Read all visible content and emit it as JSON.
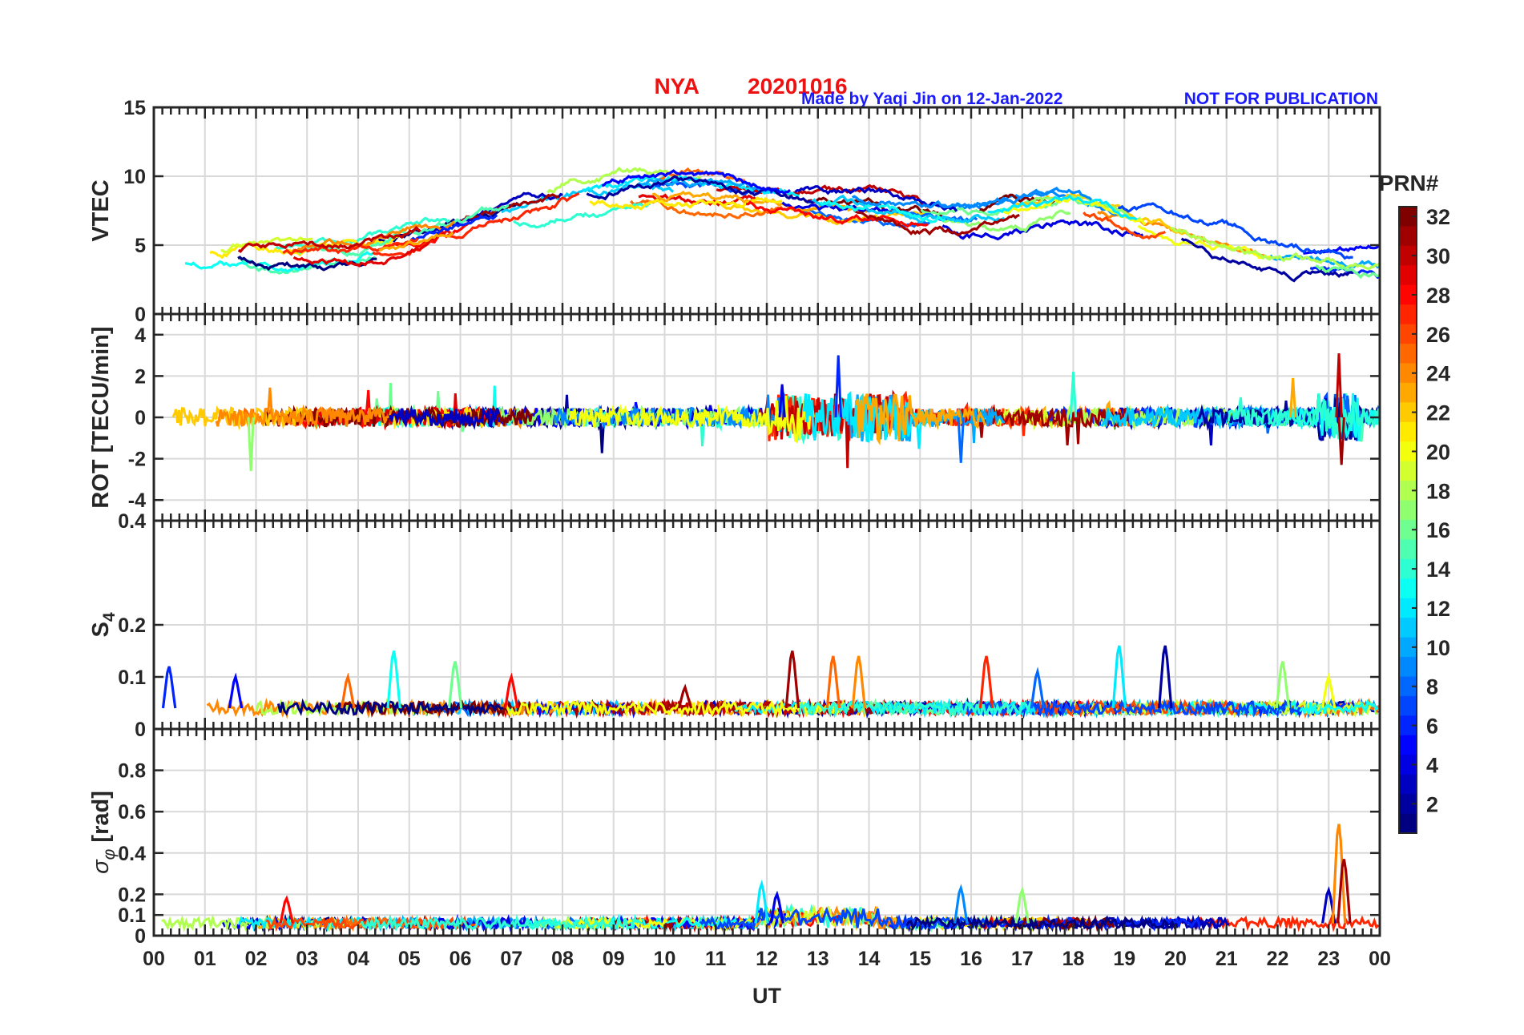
{
  "header": {
    "station": "NYA",
    "date": "20201016",
    "credit": "Made by Yaqi Jin on 12-Jan-2022",
    "notice": "NOT FOR PUBLICATION",
    "title_color": "#ee1111",
    "credit_color": "#1a1aff"
  },
  "chart_data": {
    "type": "line",
    "xlabel": "UT",
    "x_range_hours": [
      0,
      24
    ],
    "x_ticks": [
      "00",
      "01",
      "02",
      "03",
      "04",
      "05",
      "06",
      "07",
      "08",
      "09",
      "10",
      "11",
      "12",
      "13",
      "14",
      "15",
      "16",
      "17",
      "18",
      "19",
      "20",
      "21",
      "22",
      "23",
      "00"
    ],
    "grid": true,
    "colormap": "jet",
    "colorbar": {
      "label": "PRN#",
      "range": [
        1,
        32
      ],
      "ticks": [
        "2",
        "4",
        "6",
        "8",
        "10",
        "12",
        "14",
        "16",
        "18",
        "20",
        "22",
        "24",
        "26",
        "28",
        "30",
        "32"
      ],
      "tick_values": [
        2,
        4,
        6,
        8,
        10,
        12,
        14,
        16,
        18,
        20,
        22,
        24,
        26,
        28,
        30,
        32
      ]
    },
    "panels": [
      {
        "id": "vtec",
        "ylabel": "VTEC",
        "ylim": [
          0,
          15
        ],
        "yticks": [
          0,
          5,
          10,
          15
        ],
        "ytick_labels": [
          "0",
          "5",
          "10",
          "15"
        ],
        "series_summary": "VTEC per PRN, diurnal shape: ~3-5 near 00 UT, rising to ~8-10 around 10-18 UT, falling to ~3-4 by 23-24 UT",
        "envelope_hours": [
          0,
          2,
          4,
          6,
          8,
          10,
          12,
          14,
          16,
          18,
          20,
          22,
          24
        ],
        "envelope_values": [
          4,
          4.5,
          4.5,
          6.5,
          8.5,
          9,
          8.5,
          8,
          7,
          8,
          6,
          4,
          3.5
        ]
      },
      {
        "id": "rot",
        "ylabel": "ROT [TECU/min]",
        "ylim": [
          -5,
          5
        ],
        "yticks": [
          -4,
          -2,
          0,
          2,
          4
        ],
        "ytick_labels": [
          "-4",
          "-2",
          "0",
          "2",
          "4"
        ],
        "series_summary": "Rate of TEC fluctuating around 0; largest spikes ~3 near 13.4 UT and 23.2 UT, ~-2.6 near 1.9 UT, ~-2.2 near 15.8 UT"
      },
      {
        "id": "s4",
        "ylabel": "S4",
        "ylim": [
          0,
          0.4
        ],
        "yticks": [
          0,
          0.1,
          0.2,
          0.4
        ],
        "ytick_labels": [
          "0",
          "0.1",
          "0.2",
          "0.4"
        ],
        "series_summary": "Amplitude scintillation baseline ~0.03-0.05 with peaks up to ~0.15-0.16",
        "peaks": [
          {
            "hour": 0.3,
            "value": 0.12,
            "prn": 6
          },
          {
            "hour": 1.6,
            "value": 0.1,
            "prn": 5
          },
          {
            "hour": 3.8,
            "value": 0.1,
            "prn": 25
          },
          {
            "hour": 4.7,
            "value": 0.15,
            "prn": 13
          },
          {
            "hour": 5.9,
            "value": 0.13,
            "prn": 16
          },
          {
            "hour": 7.0,
            "value": 0.1,
            "prn": 28
          },
          {
            "hour": 10.4,
            "value": 0.08,
            "prn": 31
          },
          {
            "hour": 12.5,
            "value": 0.15,
            "prn": 31
          },
          {
            "hour": 13.3,
            "value": 0.14,
            "prn": 25
          },
          {
            "hour": 13.8,
            "value": 0.14,
            "prn": 24
          },
          {
            "hour": 16.3,
            "value": 0.14,
            "prn": 27
          },
          {
            "hour": 17.3,
            "value": 0.11,
            "prn": 8
          },
          {
            "hour": 18.9,
            "value": 0.16,
            "prn": 12
          },
          {
            "hour": 19.8,
            "value": 0.16,
            "prn": 2
          },
          {
            "hour": 22.1,
            "value": 0.13,
            "prn": 17
          },
          {
            "hour": 23.0,
            "value": 0.1,
            "prn": 20
          }
        ]
      },
      {
        "id": "sigma_phi",
        "ylabel": "σ_φ [rad]",
        "ylim": [
          0,
          1
        ],
        "yticks": [
          0,
          0.1,
          0.2,
          0.4,
          0.6,
          0.8
        ],
        "ytick_labels": [
          "0",
          "0.1",
          "0.2",
          "0.4",
          "0.6",
          "0.8"
        ],
        "series_summary": "Phase scintillation baseline ~0.03-0.08, elevated ~0.2 around 12-14 UT; max ~0.54 near 23.2 UT",
        "peaks": [
          {
            "hour": 2.6,
            "value": 0.18,
            "prn": 28
          },
          {
            "hour": 11.9,
            "value": 0.25,
            "prn": 12
          },
          {
            "hour": 12.2,
            "value": 0.2,
            "prn": 4
          },
          {
            "hour": 15.8,
            "value": 0.23,
            "prn": 9
          },
          {
            "hour": 17.0,
            "value": 0.22,
            "prn": 17
          },
          {
            "hour": 23.0,
            "value": 0.22,
            "prn": 3
          },
          {
            "hour": 23.2,
            "value": 0.54,
            "prn": 24
          },
          {
            "hour": 23.3,
            "value": 0.37,
            "prn": 31
          }
        ]
      }
    ]
  }
}
